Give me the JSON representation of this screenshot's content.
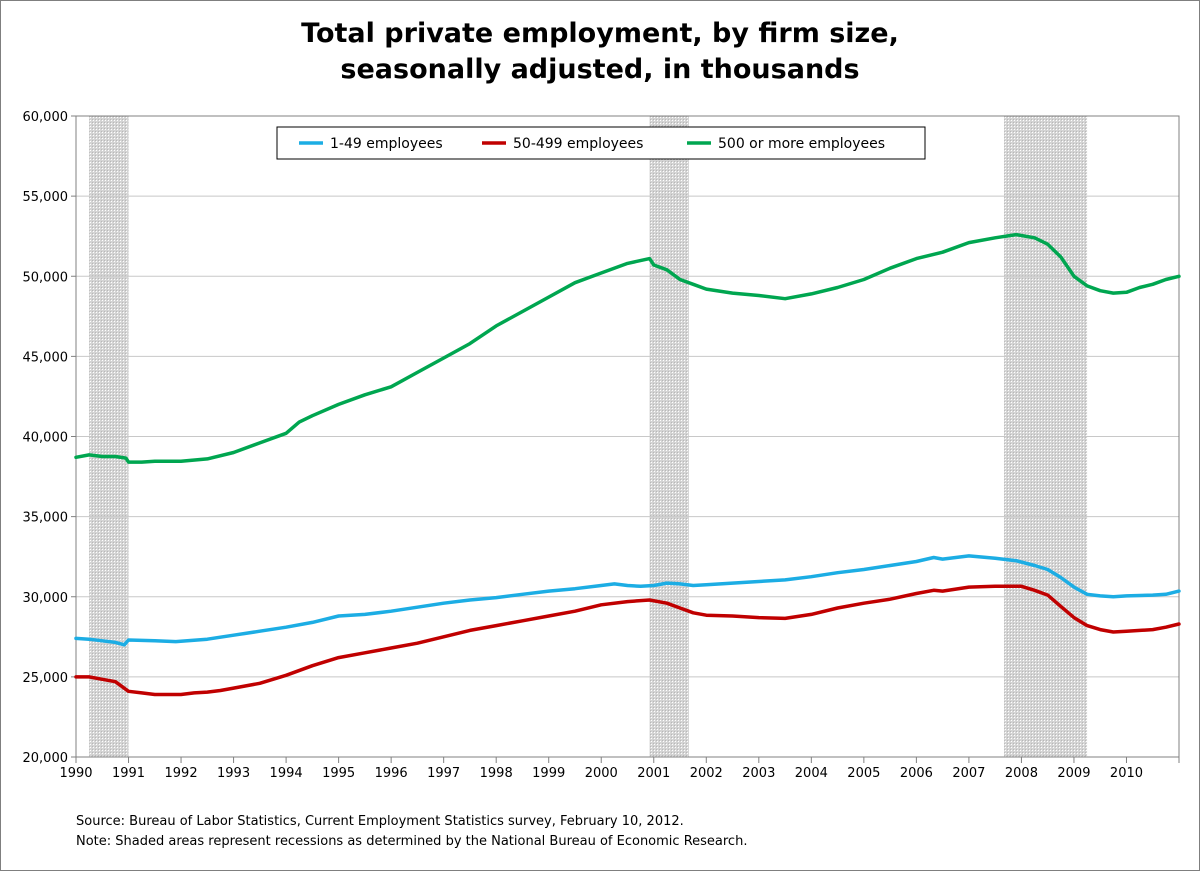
{
  "chart_data": {
    "type": "line",
    "title_lines": [
      "Total private employment, by firm size,",
      "seasonally adjusted, in thousands"
    ],
    "xlabel": "",
    "ylabel": "",
    "ylim": [
      20000,
      60000
    ],
    "xlim": [
      1990,
      2011
    ],
    "yticks": [
      20000,
      25000,
      30000,
      35000,
      40000,
      45000,
      50000,
      55000,
      60000
    ],
    "ytick_labels": [
      "20,000",
      "25,000",
      "30,000",
      "35,000",
      "40,000",
      "45,000",
      "50,000",
      "55,000",
      "60,000"
    ],
    "xticks": [
      1990,
      1991,
      1992,
      1993,
      1994,
      1995,
      1996,
      1997,
      1998,
      1999,
      2000,
      2001,
      2002,
      2003,
      2004,
      2005,
      2006,
      2007,
      2008,
      2009,
      2010
    ],
    "xtick_labels": [
      "1990",
      "1991",
      "1992",
      "1993",
      "1994",
      "1995",
      "1996",
      "1997",
      "1998",
      "1999",
      "2000",
      "2001",
      "2002",
      "2003",
      "2004",
      "2005",
      "2006",
      "2007",
      "2008",
      "2009",
      "2010"
    ],
    "grid": "horizontal",
    "legend_position": "top-center",
    "recessions": [
      {
        "start": 1990.25,
        "end": 1991.0
      },
      {
        "start": 2000.92,
        "end": 2001.67
      },
      {
        "start": 2007.67,
        "end": 2009.25
      }
    ],
    "recession_color": "#d4d4d4",
    "series": [
      {
        "name": "1-49 employees",
        "color": "#1cade4",
        "points": [
          [
            1990.0,
            27400
          ],
          [
            1990.25,
            27350
          ],
          [
            1990.5,
            27250
          ],
          [
            1990.75,
            27150
          ],
          [
            1990.92,
            27000
          ],
          [
            1991.0,
            27300
          ],
          [
            1991.5,
            27250
          ],
          [
            1991.9,
            27200
          ],
          [
            1992.5,
            27350
          ],
          [
            1993.0,
            27600
          ],
          [
            1993.5,
            27850
          ],
          [
            1994.0,
            28100
          ],
          [
            1994.5,
            28400
          ],
          [
            1995.0,
            28800
          ],
          [
            1995.5,
            28900
          ],
          [
            1996.0,
            29100
          ],
          [
            1996.5,
            29350
          ],
          [
            1997.0,
            29600
          ],
          [
            1997.5,
            29800
          ],
          [
            1998.0,
            29950
          ],
          [
            1998.5,
            30150
          ],
          [
            1999.0,
            30350
          ],
          [
            1999.5,
            30500
          ],
          [
            2000.0,
            30700
          ],
          [
            2000.25,
            30800
          ],
          [
            2000.5,
            30700
          ],
          [
            2000.75,
            30650
          ],
          [
            2001.0,
            30700
          ],
          [
            2001.25,
            30850
          ],
          [
            2001.5,
            30800
          ],
          [
            2001.75,
            30700
          ],
          [
            2002.0,
            30750
          ],
          [
            2002.5,
            30850
          ],
          [
            2003.0,
            30950
          ],
          [
            2003.5,
            31050
          ],
          [
            2004.0,
            31250
          ],
          [
            2004.5,
            31500
          ],
          [
            2005.0,
            31700
          ],
          [
            2005.5,
            31950
          ],
          [
            2006.0,
            32200
          ],
          [
            2006.33,
            32450
          ],
          [
            2006.5,
            32350
          ],
          [
            2006.75,
            32450
          ],
          [
            2007.0,
            32550
          ],
          [
            2007.5,
            32400
          ],
          [
            2007.9,
            32250
          ],
          [
            2008.25,
            31950
          ],
          [
            2008.5,
            31700
          ],
          [
            2008.75,
            31200
          ],
          [
            2009.0,
            30600
          ],
          [
            2009.25,
            30150
          ],
          [
            2009.5,
            30050
          ],
          [
            2009.75,
            30000
          ],
          [
            2010.0,
            30050
          ],
          [
            2010.5,
            30100
          ],
          [
            2010.75,
            30150
          ],
          [
            2011.0,
            30350
          ]
        ]
      },
      {
        "name": "50-499 employees",
        "color": "#c00000",
        "points": [
          [
            1990.0,
            25000
          ],
          [
            1990.25,
            25000
          ],
          [
            1990.5,
            24850
          ],
          [
            1990.75,
            24700
          ],
          [
            1991.0,
            24100
          ],
          [
            1991.25,
            24000
          ],
          [
            1991.5,
            23900
          ],
          [
            1991.75,
            23900
          ],
          [
            1992.0,
            23900
          ],
          [
            1992.25,
            24000
          ],
          [
            1992.5,
            24050
          ],
          [
            1992.75,
            24150
          ],
          [
            1993.0,
            24300
          ],
          [
            1993.5,
            24600
          ],
          [
            1994.0,
            25100
          ],
          [
            1994.5,
            25700
          ],
          [
            1995.0,
            26200
          ],
          [
            1995.5,
            26500
          ],
          [
            1996.0,
            26800
          ],
          [
            1996.5,
            27100
          ],
          [
            1997.0,
            27500
          ],
          [
            1997.5,
            27900
          ],
          [
            1998.0,
            28200
          ],
          [
            1998.5,
            28500
          ],
          [
            1999.0,
            28800
          ],
          [
            1999.5,
            29100
          ],
          [
            2000.0,
            29500
          ],
          [
            2000.5,
            29700
          ],
          [
            2000.92,
            29800
          ],
          [
            2001.25,
            29600
          ],
          [
            2001.5,
            29300
          ],
          [
            2001.75,
            29000
          ],
          [
            2002.0,
            28850
          ],
          [
            2002.5,
            28800
          ],
          [
            2003.0,
            28700
          ],
          [
            2003.5,
            28650
          ],
          [
            2004.0,
            28900
          ],
          [
            2004.5,
            29300
          ],
          [
            2005.0,
            29600
          ],
          [
            2005.5,
            29850
          ],
          [
            2006.0,
            30200
          ],
          [
            2006.33,
            30400
          ],
          [
            2006.5,
            30350
          ],
          [
            2007.0,
            30600
          ],
          [
            2007.5,
            30650
          ],
          [
            2008.0,
            30650
          ],
          [
            2008.25,
            30400
          ],
          [
            2008.5,
            30100
          ],
          [
            2008.75,
            29400
          ],
          [
            2009.0,
            28700
          ],
          [
            2009.25,
            28200
          ],
          [
            2009.5,
            27950
          ],
          [
            2009.75,
            27800
          ],
          [
            2010.0,
            27850
          ],
          [
            2010.5,
            27950
          ],
          [
            2010.75,
            28100
          ],
          [
            2011.0,
            28300
          ]
        ]
      },
      {
        "name": "500 or more employees",
        "color": "#00a650",
        "points": [
          [
            1990.0,
            38700
          ],
          [
            1990.25,
            38850
          ],
          [
            1990.5,
            38750
          ],
          [
            1990.75,
            38750
          ],
          [
            1990.95,
            38650
          ],
          [
            1991.0,
            38400
          ],
          [
            1991.25,
            38400
          ],
          [
            1991.5,
            38450
          ],
          [
            1991.75,
            38450
          ],
          [
            1992.0,
            38450
          ],
          [
            1992.5,
            38600
          ],
          [
            1993.0,
            39000
          ],
          [
            1993.5,
            39600
          ],
          [
            1994.0,
            40200
          ],
          [
            1994.25,
            40900
          ],
          [
            1994.5,
            41300
          ],
          [
            1995.0,
            42000
          ],
          [
            1995.5,
            42600
          ],
          [
            1996.0,
            43100
          ],
          [
            1996.5,
            44000
          ],
          [
            1997.0,
            44900
          ],
          [
            1997.5,
            45800
          ],
          [
            1998.0,
            46900
          ],
          [
            1998.5,
            47800
          ],
          [
            1999.0,
            48700
          ],
          [
            1999.5,
            49600
          ],
          [
            2000.0,
            50200
          ],
          [
            2000.5,
            50800
          ],
          [
            2000.92,
            51100
          ],
          [
            2001.0,
            50700
          ],
          [
            2001.25,
            50400
          ],
          [
            2001.5,
            49800
          ],
          [
            2001.75,
            49500
          ],
          [
            2002.0,
            49200
          ],
          [
            2002.5,
            48950
          ],
          [
            2003.0,
            48800
          ],
          [
            2003.5,
            48600
          ],
          [
            2004.0,
            48900
          ],
          [
            2004.5,
            49300
          ],
          [
            2005.0,
            49800
          ],
          [
            2005.5,
            50500
          ],
          [
            2006.0,
            51100
          ],
          [
            2006.5,
            51500
          ],
          [
            2007.0,
            52100
          ],
          [
            2007.5,
            52400
          ],
          [
            2007.9,
            52600
          ],
          [
            2008.25,
            52400
          ],
          [
            2008.5,
            52000
          ],
          [
            2008.75,
            51200
          ],
          [
            2009.0,
            50000
          ],
          [
            2009.25,
            49400
          ],
          [
            2009.5,
            49100
          ],
          [
            2009.75,
            48950
          ],
          [
            2010.0,
            49000
          ],
          [
            2010.25,
            49300
          ],
          [
            2010.5,
            49500
          ],
          [
            2010.75,
            49800
          ],
          [
            2011.0,
            50000
          ]
        ]
      }
    ],
    "notes": {
      "source": "Source: Bureau of Labor Statistics, Current Employment Statistics survey, February 10, 2012.",
      "note": "Note: Shaded areas represent recessions as determined by the National Bureau of Economic Research."
    }
  }
}
